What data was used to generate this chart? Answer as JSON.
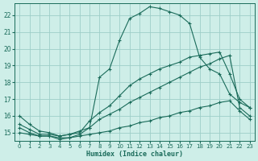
{
  "xlabel": "Humidex (Indice chaleur)",
  "xlim": [
    -0.5,
    23.5
  ],
  "ylim": [
    14.5,
    22.7
  ],
  "yticks": [
    15,
    16,
    17,
    18,
    19,
    20,
    21,
    22
  ],
  "xticks": [
    0,
    1,
    2,
    3,
    4,
    5,
    6,
    7,
    8,
    9,
    10,
    11,
    12,
    13,
    14,
    15,
    16,
    17,
    18,
    19,
    20,
    21,
    22,
    23
  ],
  "bg_color": "#ceeee8",
  "grid_color": "#9ecec8",
  "line_color": "#1a6b5a",
  "lines": [
    {
      "x": [
        0,
        1,
        2,
        3,
        4,
        5,
        6,
        7,
        8,
        9,
        10,
        11,
        12,
        13,
        14,
        15,
        16,
        17,
        18,
        19,
        20,
        21,
        22,
        23
      ],
      "y": [
        16.0,
        15.5,
        15.1,
        15.0,
        14.8,
        14.9,
        15.1,
        15.3,
        18.3,
        18.8,
        20.5,
        21.8,
        22.1,
        22.5,
        22.4,
        22.2,
        22.0,
        21.5,
        19.5,
        18.8,
        18.5,
        17.3,
        16.8,
        16.5
      ]
    },
    {
      "x": [
        0,
        1,
        2,
        3,
        4,
        5,
        6,
        7,
        8,
        9,
        10,
        11,
        12,
        13,
        14,
        15,
        16,
        17,
        18,
        19,
        20,
        21,
        22,
        23
      ],
      "y": [
        15.5,
        15.2,
        14.9,
        14.9,
        14.8,
        14.9,
        15.0,
        15.7,
        16.2,
        16.6,
        17.2,
        17.8,
        18.2,
        18.5,
        18.8,
        19.0,
        19.2,
        19.5,
        19.6,
        19.7,
        19.8,
        18.5,
        17.0,
        16.5
      ]
    },
    {
      "x": [
        0,
        1,
        2,
        3,
        4,
        5,
        6,
        7,
        8,
        9,
        10,
        11,
        12,
        13,
        14,
        15,
        16,
        17,
        18,
        19,
        20,
        21,
        22,
        23
      ],
      "y": [
        15.3,
        15.0,
        14.8,
        14.8,
        14.6,
        14.7,
        14.9,
        15.3,
        15.8,
        16.1,
        16.4,
        16.8,
        17.1,
        17.4,
        17.7,
        18.0,
        18.3,
        18.6,
        18.9,
        19.1,
        19.4,
        19.6,
        16.5,
        16.0
      ]
    },
    {
      "x": [
        0,
        1,
        2,
        3,
        4,
        5,
        6,
        7,
        8,
        9,
        10,
        11,
        12,
        13,
        14,
        15,
        16,
        17,
        18,
        19,
        20,
        21,
        22,
        23
      ],
      "y": [
        15.0,
        14.9,
        14.8,
        14.8,
        14.7,
        14.7,
        14.8,
        14.9,
        15.0,
        15.1,
        15.3,
        15.4,
        15.6,
        15.7,
        15.9,
        16.0,
        16.2,
        16.3,
        16.5,
        16.6,
        16.8,
        16.9,
        16.3,
        15.8
      ]
    }
  ]
}
